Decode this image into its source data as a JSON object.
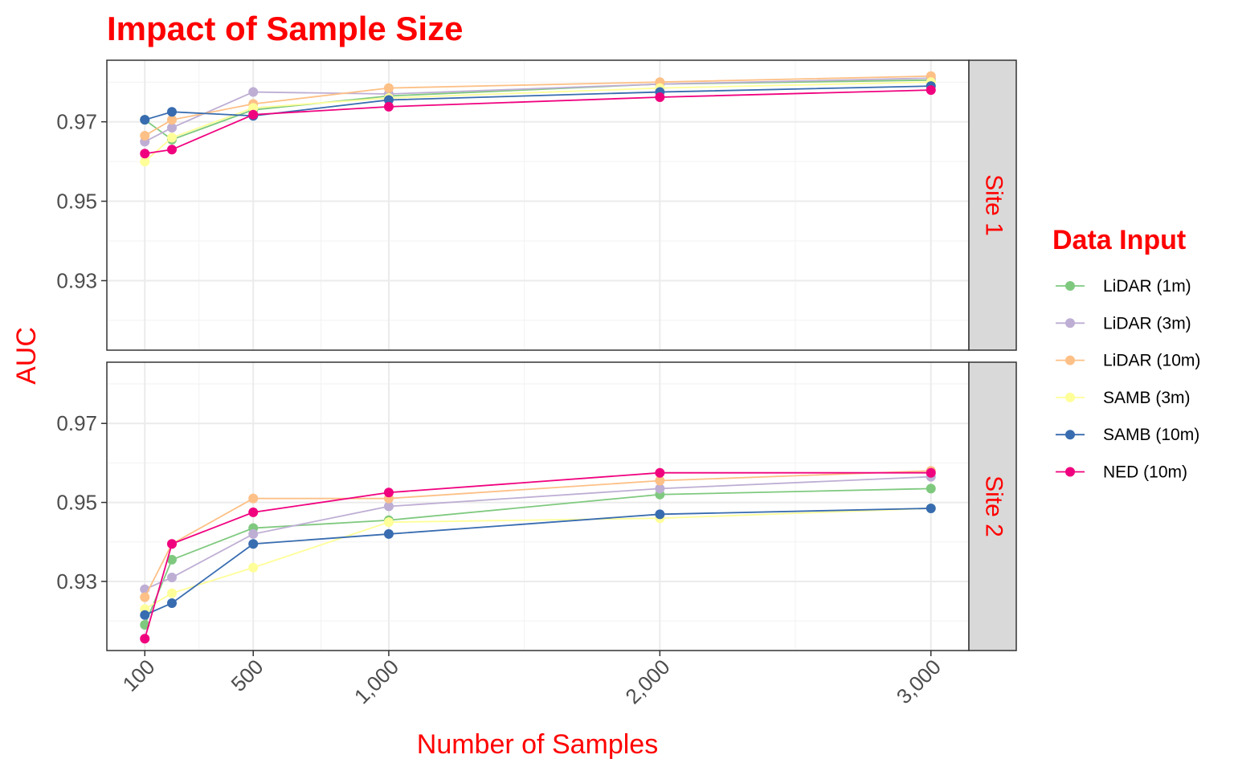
{
  "chart_data": {
    "type": "line",
    "title": "Impact of Sample Size",
    "xlabel": "Number of Samples",
    "ylabel": "AUC",
    "x": [
      100,
      200,
      500,
      1000,
      2000,
      3000
    ],
    "x_ticks": [
      100,
      500,
      1000,
      2000,
      3000
    ],
    "x_tick_labels": [
      "100",
      "500",
      "1,000",
      "2,000",
      "3,000"
    ],
    "x_minor_ticks": [
      300,
      750,
      1500,
      2500
    ],
    "xlim": [
      -40,
      3140
    ],
    "y_ticks": [
      0.93,
      0.95,
      0.97
    ],
    "y_tick_labels": [
      "0.93",
      "0.95",
      "0.97"
    ],
    "y_minor_ticks": [
      0.92,
      0.94,
      0.96,
      0.98
    ],
    "ylim": [
      0.9125,
      0.9855
    ],
    "grid": true,
    "legend": {
      "title": "Data Input",
      "placement": "right"
    },
    "text_color": "#ff0000",
    "series_styles": [
      {
        "name": "LiDAR (1m)",
        "color": "#7fc97f"
      },
      {
        "name": "LiDAR (3m)",
        "color": "#beaed4"
      },
      {
        "name": "LiDAR (10m)",
        "color": "#fdc086"
      },
      {
        "name": "SAMB (3m)",
        "color": "#ffff99"
      },
      {
        "name": "SAMB (10m)",
        "color": "#386cb0"
      },
      {
        "name": "NED (10m)",
        "color": "#f0027f"
      }
    ],
    "panels": [
      {
        "label": "Site 1",
        "series": [
          {
            "name": "LiDAR (1m)",
            "values": [
              0.9705,
              0.9655,
              0.973,
              0.9765,
              0.9795,
              0.9805
            ]
          },
          {
            "name": "LiDAR (3m)",
            "values": [
              0.965,
              0.9685,
              0.9775,
              0.977,
              0.9795,
              0.981
            ]
          },
          {
            "name": "LiDAR (10m)",
            "values": [
              0.9665,
              0.9705,
              0.9745,
              0.9785,
              0.98,
              0.9815
            ]
          },
          {
            "name": "SAMB (3m)",
            "values": [
              0.96,
              0.966,
              0.9735,
              0.976,
              0.9785,
              0.98
            ]
          },
          {
            "name": "SAMB (10m)",
            "values": [
              0.9705,
              0.9725,
              0.9715,
              0.9755,
              0.9775,
              0.979
            ]
          },
          {
            "name": "NED (10m)",
            "values": [
              0.962,
              0.963,
              0.9718,
              0.9738,
              0.9762,
              0.978
            ]
          }
        ]
      },
      {
        "label": "Site 2",
        "series": [
          {
            "name": "LiDAR (1m)",
            "values": [
              0.919,
              0.9355,
              0.9435,
              0.9455,
              0.952,
              0.9535
            ]
          },
          {
            "name": "LiDAR (3m)",
            "values": [
              0.928,
              0.931,
              0.942,
              0.949,
              0.9535,
              0.9565
            ]
          },
          {
            "name": "LiDAR (10m)",
            "values": [
              0.926,
              0.9395,
              0.951,
              0.951,
              0.9555,
              0.958
            ]
          },
          {
            "name": "SAMB (3m)",
            "values": [
              0.923,
              0.927,
              0.9335,
              0.945,
              0.946,
              0.9485
            ]
          },
          {
            "name": "SAMB (10m)",
            "values": [
              0.9215,
              0.9245,
              0.9395,
              0.942,
              0.947,
              0.9485
            ]
          },
          {
            "name": "NED (10m)",
            "values": [
              0.9155,
              0.9395,
              0.9475,
              0.9525,
              0.9575,
              0.9575
            ]
          }
        ]
      }
    ]
  }
}
